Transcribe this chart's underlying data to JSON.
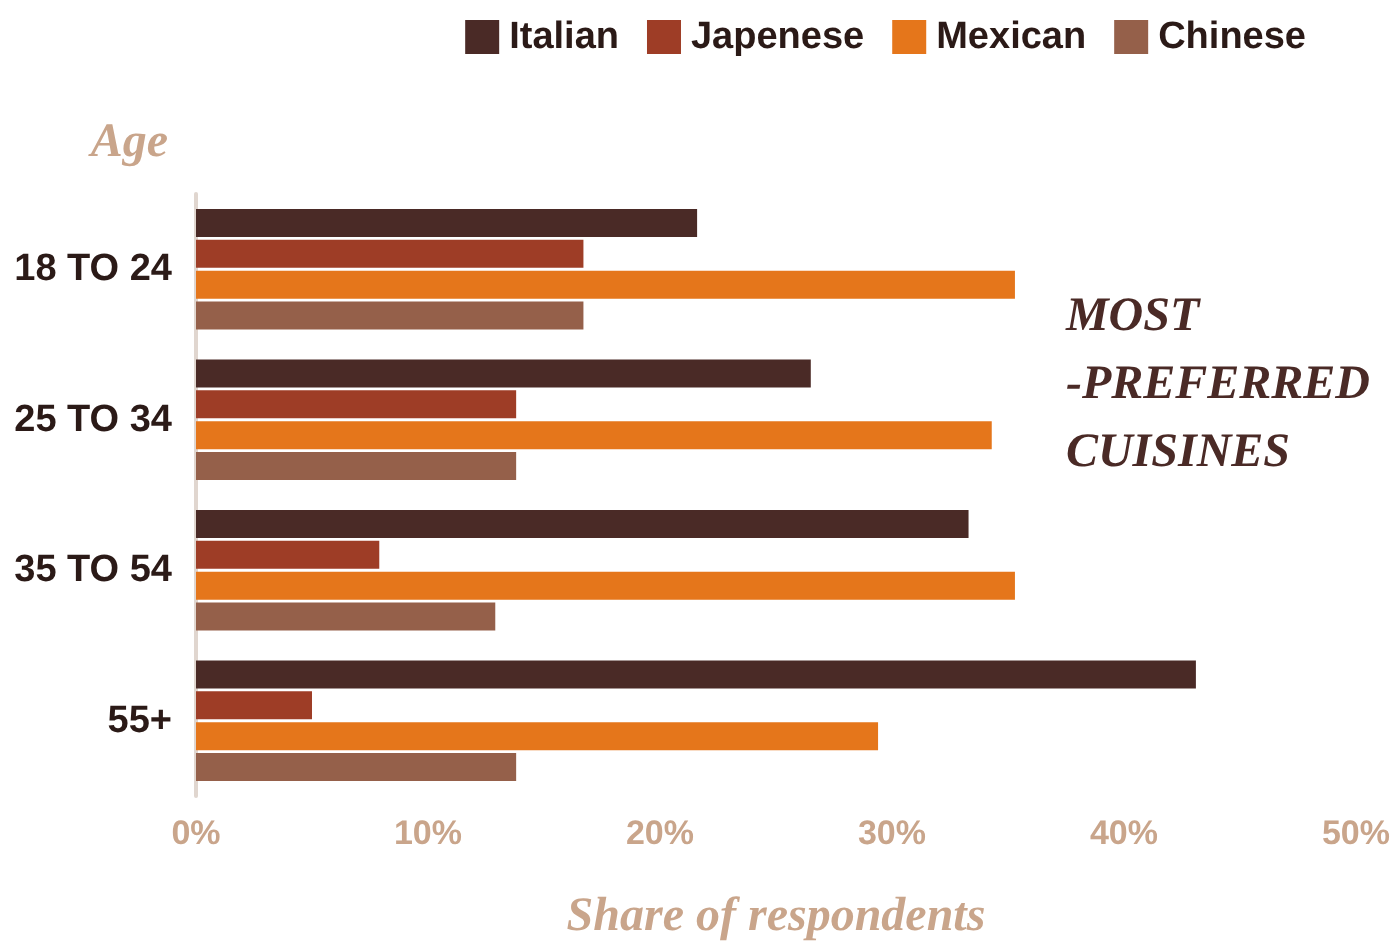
{
  "chart_data": {
    "type": "bar",
    "orientation": "horizontal",
    "title": "MOST\n-PREFERRED\nCUISINES",
    "ylabel": "Age",
    "xlabel": "Share of respondents",
    "categories": [
      "18 TO 24",
      "25 TO 34",
      "35 TO 54",
      "55+"
    ],
    "series": [
      {
        "name": "Italian",
        "color": "#4a2a26",
        "values": [
          21.6,
          26.5,
          33.3,
          43.1
        ]
      },
      {
        "name": "Japenese",
        "color": "#9e3d26",
        "values": [
          16.7,
          13.8,
          7.9,
          5
        ]
      },
      {
        "name": "Mexican",
        "color": "#e5761b",
        "values": [
          35.3,
          34.3,
          35.3,
          29.4
        ]
      },
      {
        "name": "Chinese",
        "color": "#95604a",
        "values": [
          16.7,
          13.8,
          12.9,
          13.8
        ]
      }
    ],
    "xlim": [
      0,
      50
    ],
    "xticks": [
      {
        "value": 0,
        "label": "0%"
      },
      {
        "value": 10,
        "label": "10%"
      },
      {
        "value": 20,
        "label": "20%"
      },
      {
        "value": 30,
        "label": "30%"
      },
      {
        "value": 40,
        "label": "40%"
      },
      {
        "value": 50,
        "label": "50%"
      }
    ],
    "legend": "top right",
    "grid": false
  }
}
